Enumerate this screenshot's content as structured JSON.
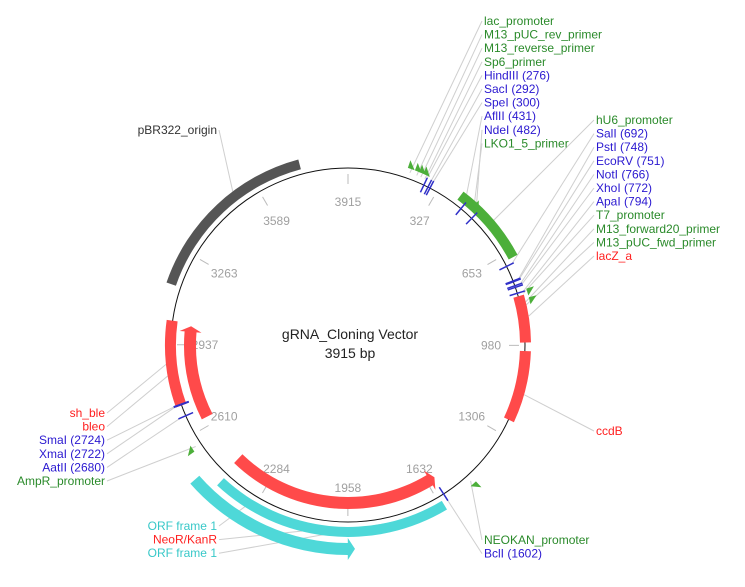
{
  "title": "gRNA_Cloning Vector",
  "length_label": "3915 bp",
  "length": 3915,
  "colors": {
    "backbone": "#111111",
    "origin": "#555555",
    "promoter": "#4caf3a",
    "gene": "#ff4a4a",
    "orf": "#4ed8d8",
    "site": "#3030c8",
    "tick": "#a0a0a0",
    "label_green": "#2a8a2a",
    "label_blue": "#2a18d0",
    "label_red": "#ff2020",
    "label_cyan": "#38c8c8",
    "label_gray": "#333333"
  },
  "ticks": [
    "3915",
    "327",
    "653",
    "980",
    "1306",
    "1632",
    "1958",
    "2284",
    "2610",
    "2937",
    "3263",
    "3589"
  ],
  "tick_bp": [
    0,
    327,
    653,
    980,
    1306,
    1632,
    1958,
    2284,
    2610,
    2937,
    3263,
    3589
  ],
  "features": [
    {
      "name": "pBR322_origin",
      "start": 3143,
      "end": 3752,
      "ring": "outer",
      "color": "origin",
      "dir": "none"
    },
    {
      "name": "hU6_promoter",
      "start": 402,
      "end": 674,
      "ring": "outer",
      "color": "promoter",
      "dir": "none"
    },
    {
      "name": "lacZ_a",
      "start": 805,
      "end": 970,
      "ring": "mid",
      "color": "gene",
      "dir": "none"
    },
    {
      "name": "ccdB",
      "start": 1000,
      "end": 1250,
      "ring": "mid",
      "color": "gene",
      "dir": "none"
    },
    {
      "name": "NeoR/KanR",
      "start": 1597,
      "end": 2436,
      "ring": "inner",
      "color": "gene",
      "dir": "rev"
    },
    {
      "name": "ORF frame 1",
      "start": 1620,
      "end": 2425,
      "ring": "outer",
      "color": "orf",
      "dir": "none"
    },
    {
      "name": "ORF frame 1",
      "start": 1936,
      "end": 2487,
      "ring": "outer2",
      "color": "orf",
      "dir": "rev"
    },
    {
      "name": "sh_ble",
      "start": 2719,
      "end": 3022,
      "ring": "mid",
      "color": "gene",
      "dir": "none"
    },
    {
      "name": "bleo",
      "start": 2643,
      "end": 3010,
      "ring": "inner",
      "color": "gene",
      "dir": "fwd"
    }
  ],
  "primers": [
    {
      "name": "lac_promoter",
      "bp": 215
    },
    {
      "name": "M13_pUC_rev_primer",
      "bp": 240
    },
    {
      "name": "M13_reverse_primer",
      "bp": 255
    },
    {
      "name": "Sp6_primer",
      "bp": 270
    },
    {
      "name": "LKO1_5_primer",
      "bp": 470
    },
    {
      "name": "T7_promoter",
      "bp": 800
    },
    {
      "name": "M13_forward20_primer",
      "bp": 830
    },
    {
      "name": "NEOKAN_promoter",
      "bp": 1500
    },
    {
      "name": "AmpR_promoter",
      "bp": 2570
    }
  ],
  "sites": [
    {
      "name": "HindIII (276)",
      "bp": 276
    },
    {
      "name": "SacI (292)",
      "bp": 292
    },
    {
      "name": "SpeI (300)",
      "bp": 300
    },
    {
      "name": "AflII (431)",
      "bp": 431
    },
    {
      "name": "NdeI (482)",
      "bp": 482
    },
    {
      "name": "SalI (692)",
      "bp": 692
    },
    {
      "name": "PstI (748)",
      "bp": 748
    },
    {
      "name": "EcoRV (751)",
      "bp": 751
    },
    {
      "name": "NotI (766)",
      "bp": 766
    },
    {
      "name": "XhoI (772)",
      "bp": 772
    },
    {
      "name": "ApaI (794)",
      "bp": 794
    },
    {
      "name": "BclI (1602)",
      "bp": 1602
    },
    {
      "name": "AatII (2680)",
      "bp": 2680
    },
    {
      "name": "XmaI (2722)",
      "bp": 2722
    },
    {
      "name": "SmaI (2724)",
      "bp": 2724
    }
  ],
  "label_groups": [
    {
      "id": "top",
      "labels": [
        {
          "text": "lac_promoter",
          "color": "label_green",
          "bp": 215
        },
        {
          "text": "M13_pUC_rev_primer",
          "color": "label_green",
          "bp": 240
        },
        {
          "text": "M13_reverse_primer",
          "color": "label_green",
          "bp": 255
        },
        {
          "text": "Sp6_primer",
          "color": "label_green",
          "bp": 270
        },
        {
          "text": "HindIII (276)",
          "color": "label_blue",
          "bp": 276
        },
        {
          "text": "SacI (292)",
          "color": "label_blue",
          "bp": 292
        },
        {
          "text": "SpeI (300)",
          "color": "label_blue",
          "bp": 300
        },
        {
          "text": "AflII (431)",
          "color": "label_blue",
          "bp": 431
        },
        {
          "text": "NdeI (482)",
          "color": "label_blue",
          "bp": 482
        },
        {
          "text": "LKO1_5_primer",
          "color": "label_green",
          "bp": 470
        }
      ]
    },
    {
      "id": "right",
      "labels": [
        {
          "text": "hU6_promoter",
          "color": "label_green",
          "bp": 540
        },
        {
          "text": "SalI (692)",
          "color": "label_blue",
          "bp": 692
        },
        {
          "text": "PstI (748)",
          "color": "label_blue",
          "bp": 748
        },
        {
          "text": "EcoRV (751)",
          "color": "label_blue",
          "bp": 751
        },
        {
          "text": "NotI (766)",
          "color": "label_blue",
          "bp": 766
        },
        {
          "text": "XhoI (772)",
          "color": "label_blue",
          "bp": 772
        },
        {
          "text": "ApaI (794)",
          "color": "label_blue",
          "bp": 794
        },
        {
          "text": "T7_promoter",
          "color": "label_green",
          "bp": 800
        },
        {
          "text": "M13_forward20_primer",
          "color": "label_green",
          "bp": 830
        },
        {
          "text": "M13_pUC_fwd_primer",
          "color": "label_green",
          "bp": 840
        },
        {
          "text": "lacZ_a",
          "color": "label_red",
          "bp": 880
        }
      ]
    },
    {
      "id": "ccdb",
      "labels": [
        {
          "text": "ccdB",
          "color": "label_red",
          "bp": 1150
        }
      ]
    },
    {
      "id": "bottom-right",
      "labels": [
        {
          "text": "NEOKAN_promoter",
          "color": "label_green",
          "bp": 1500
        },
        {
          "text": "BclI (1602)",
          "color": "label_blue",
          "bp": 1602
        }
      ]
    },
    {
      "id": "bottom-left",
      "labels": [
        {
          "text": "ORF frame 1",
          "color": "label_cyan",
          "bp": 2300
        },
        {
          "text": "NeoR/KanR",
          "color": "label_red",
          "bp": 2000
        },
        {
          "text": "ORF frame 1",
          "color": "label_cyan",
          "bp": 1800
        }
      ]
    },
    {
      "id": "left",
      "labels": [
        {
          "text": "sh_ble",
          "color": "label_red",
          "bp": 2870
        },
        {
          "text": "bleo",
          "color": "label_red",
          "bp": 2830
        },
        {
          "text": "SmaI (2724)",
          "color": "label_blue",
          "bp": 2724
        },
        {
          "text": "XmaI (2722)",
          "color": "label_blue",
          "bp": 2722
        },
        {
          "text": "AatII (2680)",
          "color": "label_blue",
          "bp": 2680
        },
        {
          "text": "AmpR_promoter",
          "color": "label_green",
          "bp": 2570
        }
      ]
    },
    {
      "id": "origin",
      "labels": [
        {
          "text": "pBR322_origin",
          "color": "label_gray",
          "bp": 3500
        }
      ]
    }
  ]
}
